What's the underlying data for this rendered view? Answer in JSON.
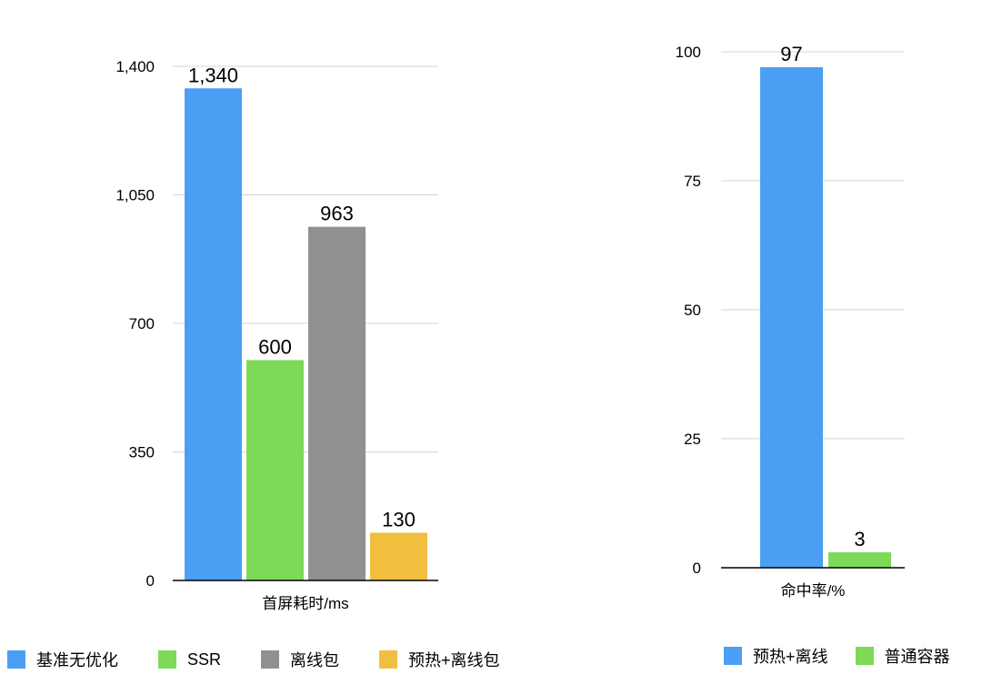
{
  "chart_data": [
    {
      "type": "bar",
      "categories": [
        "首屏耗时/ms"
      ],
      "xlabel": "首屏耗时/ms",
      "ylim": [
        0,
        1400
      ],
      "yticks": [
        0,
        350,
        700,
        1050,
        1400
      ],
      "ytick_labels": [
        "0",
        "350",
        "700",
        "1,050",
        "1,400"
      ],
      "grid": true,
      "legend_position": "bottom",
      "series": [
        {
          "name": "基准无优化",
          "values": [
            1340
          ],
          "label": "1,340",
          "color": "#4a9ff5"
        },
        {
          "name": "SSR",
          "values": [
            600
          ],
          "label": "600",
          "color": "#7ed957"
        },
        {
          "name": "离线包",
          "values": [
            963
          ],
          "label": "963",
          "color": "#909090"
        },
        {
          "name": "预热+离线包",
          "values": [
            130
          ],
          "label": "130",
          "color": "#f0bf3f"
        }
      ]
    },
    {
      "type": "bar",
      "categories": [
        "命中率/%"
      ],
      "xlabel": "命中率/%",
      "ylim": [
        0,
        100
      ],
      "yticks": [
        0,
        25,
        50,
        75,
        100
      ],
      "ytick_labels": [
        "0",
        "25",
        "50",
        "75",
        "100"
      ],
      "grid": true,
      "legend_position": "bottom",
      "series": [
        {
          "name": "预热+离线",
          "values": [
            97
          ],
          "label": "97",
          "color": "#4a9ff5"
        },
        {
          "name": "普通容器",
          "values": [
            3
          ],
          "label": "3",
          "color": "#7ed957"
        }
      ]
    }
  ]
}
